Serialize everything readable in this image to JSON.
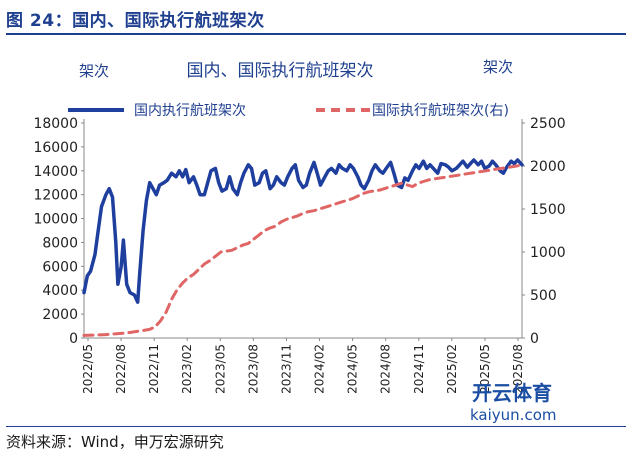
{
  "figure": {
    "title": "图 24：国内、国际执行航班架次",
    "source": "资料来源：Wind，申万宏源研究"
  },
  "chart_data": {
    "type": "line",
    "title": "国内、国际执行航班架次",
    "ylabel_left": "架次",
    "ylabel_right": "架次",
    "y_left_ticks": [
      "0",
      "2000",
      "4000",
      "6000",
      "8000",
      "10000",
      "12000",
      "14000",
      "16000",
      "18000"
    ],
    "y_right_ticks": [
      "0",
      "500",
      "1000",
      "1500",
      "2000",
      "2500"
    ],
    "ylim_left": [
      0,
      18000
    ],
    "ylim_right": [
      0,
      2500
    ],
    "x_ticks": [
      "2022/05",
      "2022/08",
      "2022/11",
      "2023/02",
      "2023/05",
      "2023/08",
      "2023/11",
      "2024/02",
      "2024/05",
      "2024/08",
      "2024/11",
      "2025/02",
      "2025/05",
      "2025/08"
    ],
    "legend_position": "top",
    "grid": false,
    "series": [
      {
        "name": "国内执行航班架次",
        "axis": "left",
        "color": "#1f3f9f",
        "style": "solid",
        "points": [
          [
            0.0,
            3800
          ],
          [
            0.3,
            5200
          ],
          [
            0.6,
            5600
          ],
          [
            1.0,
            7000
          ],
          [
            1.3,
            9000
          ],
          [
            1.6,
            11000
          ],
          [
            2.0,
            12000
          ],
          [
            2.3,
            12500
          ],
          [
            2.6,
            11800
          ],
          [
            2.9,
            8000
          ],
          [
            3.1,
            4500
          ],
          [
            3.4,
            6000
          ],
          [
            3.6,
            8200
          ],
          [
            3.9,
            4500
          ],
          [
            4.2,
            3800
          ],
          [
            4.6,
            3600
          ],
          [
            4.9,
            3000
          ],
          [
            5.1,
            5500
          ],
          [
            5.4,
            9000
          ],
          [
            5.7,
            11500
          ],
          [
            6.0,
            13000
          ],
          [
            6.3,
            12500
          ],
          [
            6.6,
            12000
          ],
          [
            6.9,
            12800
          ],
          [
            7.3,
            13000
          ],
          [
            7.6,
            13200
          ],
          [
            8.0,
            13800
          ],
          [
            8.4,
            13500
          ],
          [
            8.7,
            14000
          ],
          [
            9.0,
            13500
          ],
          [
            9.3,
            14100
          ],
          [
            9.6,
            13000
          ],
          [
            10.0,
            13500
          ],
          [
            10.3,
            12800
          ],
          [
            10.6,
            12000
          ],
          [
            11.0,
            12000
          ],
          [
            11.3,
            13000
          ],
          [
            11.6,
            14000
          ],
          [
            12.0,
            14200
          ],
          [
            12.3,
            13000
          ],
          [
            12.6,
            12300
          ],
          [
            13.0,
            12500
          ],
          [
            13.3,
            13500
          ],
          [
            13.6,
            12500
          ],
          [
            14.0,
            12000
          ],
          [
            14.3,
            13000
          ],
          [
            14.6,
            13800
          ],
          [
            15.0,
            14500
          ],
          [
            15.3,
            14200
          ],
          [
            15.6,
            12800
          ],
          [
            16.0,
            13000
          ],
          [
            16.3,
            13800
          ],
          [
            16.6,
            14000
          ],
          [
            17.0,
            12500
          ],
          [
            17.3,
            12800
          ],
          [
            17.6,
            13500
          ],
          [
            18.0,
            13000
          ],
          [
            18.3,
            12800
          ],
          [
            18.6,
            13500
          ],
          [
            19.0,
            14200
          ],
          [
            19.3,
            14500
          ],
          [
            19.6,
            13200
          ],
          [
            20.0,
            12600
          ],
          [
            20.3,
            12800
          ],
          [
            20.6,
            13800
          ],
          [
            21.0,
            14700
          ],
          [
            21.3,
            13800
          ],
          [
            21.6,
            12800
          ],
          [
            22.0,
            13500
          ],
          [
            22.3,
            14000
          ],
          [
            22.6,
            14200
          ],
          [
            23.0,
            13800
          ],
          [
            23.3,
            14500
          ],
          [
            23.6,
            14200
          ],
          [
            24.0,
            14000
          ],
          [
            24.3,
            14500
          ],
          [
            24.6,
            14200
          ],
          [
            25.0,
            13500
          ],
          [
            25.3,
            12800
          ],
          [
            25.6,
            12500
          ],
          [
            26.0,
            13200
          ],
          [
            26.3,
            14000
          ],
          [
            26.6,
            14500
          ],
          [
            27.0,
            14000
          ],
          [
            27.3,
            13800
          ],
          [
            27.6,
            14200
          ],
          [
            28.0,
            14700
          ],
          [
            28.3,
            13800
          ],
          [
            28.6,
            12800
          ],
          [
            29.0,
            12600
          ],
          [
            29.3,
            13400
          ],
          [
            29.6,
            13200
          ],
          [
            30.0,
            14000
          ],
          [
            30.3,
            14500
          ],
          [
            30.6,
            14200
          ],
          [
            31.0,
            14800
          ],
          [
            31.3,
            14200
          ],
          [
            31.6,
            14500
          ],
          [
            32.0,
            14100
          ],
          [
            32.3,
            13800
          ],
          [
            32.6,
            14600
          ],
          [
            33.0,
            14500
          ],
          [
            33.3,
            14300
          ],
          [
            33.6,
            14000
          ],
          [
            34.0,
            14200
          ],
          [
            34.3,
            14500
          ],
          [
            34.6,
            14800
          ],
          [
            35.0,
            14300
          ],
          [
            35.3,
            14600
          ],
          [
            35.6,
            14900
          ],
          [
            36.0,
            14500
          ],
          [
            36.3,
            14800
          ],
          [
            36.6,
            14200
          ],
          [
            37.0,
            14400
          ],
          [
            37.3,
            14800
          ],
          [
            37.6,
            14500
          ],
          [
            38.0,
            14000
          ],
          [
            38.3,
            13800
          ],
          [
            38.6,
            14300
          ],
          [
            39.0,
            14800
          ],
          [
            39.3,
            14600
          ],
          [
            39.6,
            14900
          ],
          [
            40.0,
            14500
          ]
        ]
      },
      {
        "name": "国际执行航班架次(右)",
        "axis": "right",
        "color": "#e06666",
        "style": "dashed",
        "points": [
          [
            0.0,
            30
          ],
          [
            1.0,
            35
          ],
          [
            2.0,
            40
          ],
          [
            3.0,
            50
          ],
          [
            4.0,
            60
          ],
          [
            5.0,
            80
          ],
          [
            6.0,
            100
          ],
          [
            6.5,
            130
          ],
          [
            7.0,
            200
          ],
          [
            7.5,
            300
          ],
          [
            8.0,
            450
          ],
          [
            8.5,
            560
          ],
          [
            9.0,
            640
          ],
          [
            9.5,
            700
          ],
          [
            10.0,
            740
          ],
          [
            10.5,
            800
          ],
          [
            11.0,
            860
          ],
          [
            11.5,
            900
          ],
          [
            12.0,
            950
          ],
          [
            12.5,
            1000
          ],
          [
            13.0,
            1010
          ],
          [
            13.5,
            1020
          ],
          [
            14.0,
            1050
          ],
          [
            14.5,
            1080
          ],
          [
            15.0,
            1100
          ],
          [
            15.5,
            1150
          ],
          [
            16.0,
            1200
          ],
          [
            16.5,
            1250
          ],
          [
            17.0,
            1280
          ],
          [
            17.5,
            1300
          ],
          [
            18.0,
            1350
          ],
          [
            18.5,
            1380
          ],
          [
            19.0,
            1400
          ],
          [
            19.5,
            1420
          ],
          [
            20.0,
            1450
          ],
          [
            20.5,
            1470
          ],
          [
            21.0,
            1480
          ],
          [
            21.5,
            1500
          ],
          [
            22.0,
            1520
          ],
          [
            22.5,
            1540
          ],
          [
            23.0,
            1560
          ],
          [
            23.5,
            1580
          ],
          [
            24.0,
            1600
          ],
          [
            24.5,
            1620
          ],
          [
            25.0,
            1650
          ],
          [
            25.5,
            1680
          ],
          [
            26.0,
            1700
          ],
          [
            26.5,
            1710
          ],
          [
            27.0,
            1720
          ],
          [
            27.5,
            1740
          ],
          [
            28.0,
            1760
          ],
          [
            28.5,
            1780
          ],
          [
            29.0,
            1800
          ],
          [
            29.5,
            1780
          ],
          [
            30.0,
            1760
          ],
          [
            30.5,
            1800
          ],
          [
            31.0,
            1820
          ],
          [
            31.5,
            1840
          ],
          [
            32.0,
            1850
          ],
          [
            32.5,
            1860
          ],
          [
            33.0,
            1870
          ],
          [
            33.5,
            1880
          ],
          [
            34.0,
            1890
          ],
          [
            34.5,
            1900
          ],
          [
            35.0,
            1910
          ],
          [
            35.5,
            1920
          ],
          [
            36.0,
            1930
          ],
          [
            36.5,
            1940
          ],
          [
            37.0,
            1950
          ],
          [
            37.5,
            1960
          ],
          [
            38.0,
            1970
          ],
          [
            38.5,
            1980
          ],
          [
            39.0,
            1990
          ],
          [
            39.5,
            2000
          ],
          [
            40.0,
            2010
          ]
        ]
      }
    ]
  },
  "watermark": {
    "text": "开云体育",
    "subtext": "kaiyun.com"
  }
}
